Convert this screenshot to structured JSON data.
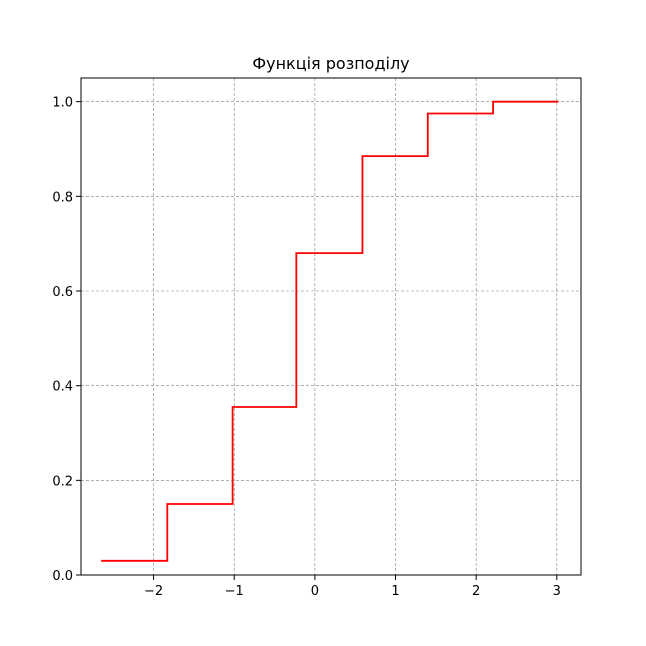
{
  "chart_data": {
    "type": "line",
    "title": "Функція розподілу",
    "xlabel": "",
    "ylabel": "",
    "xlim": [
      -2.9,
      3.3
    ],
    "ylim": [
      0.0,
      1.05
    ],
    "grid": true,
    "legend": "none",
    "x_ticks": [
      -2,
      -1,
      0,
      1,
      2,
      3
    ],
    "x_tick_labels": [
      "−2",
      "−1",
      "0",
      "1",
      "2",
      "3"
    ],
    "y_ticks": [
      0.0,
      0.2,
      0.4,
      0.6,
      0.8,
      1.0
    ],
    "y_tick_labels": [
      "0.0",
      "0.2",
      "0.4",
      "0.6",
      "0.8",
      "1.0"
    ],
    "series": [
      {
        "color": "#ff0000",
        "step": "post",
        "x": [
          -2.65,
          -1.83,
          -1.02,
          -0.23,
          0.59,
          1.4,
          2.21,
          3.02
        ],
        "y": [
          0.03,
          0.15,
          0.355,
          0.68,
          0.885,
          0.975,
          1.0,
          1.0
        ]
      }
    ],
    "colors": {
      "grid": "#808080",
      "axis": "#000000",
      "line": "#ff0000"
    }
  }
}
